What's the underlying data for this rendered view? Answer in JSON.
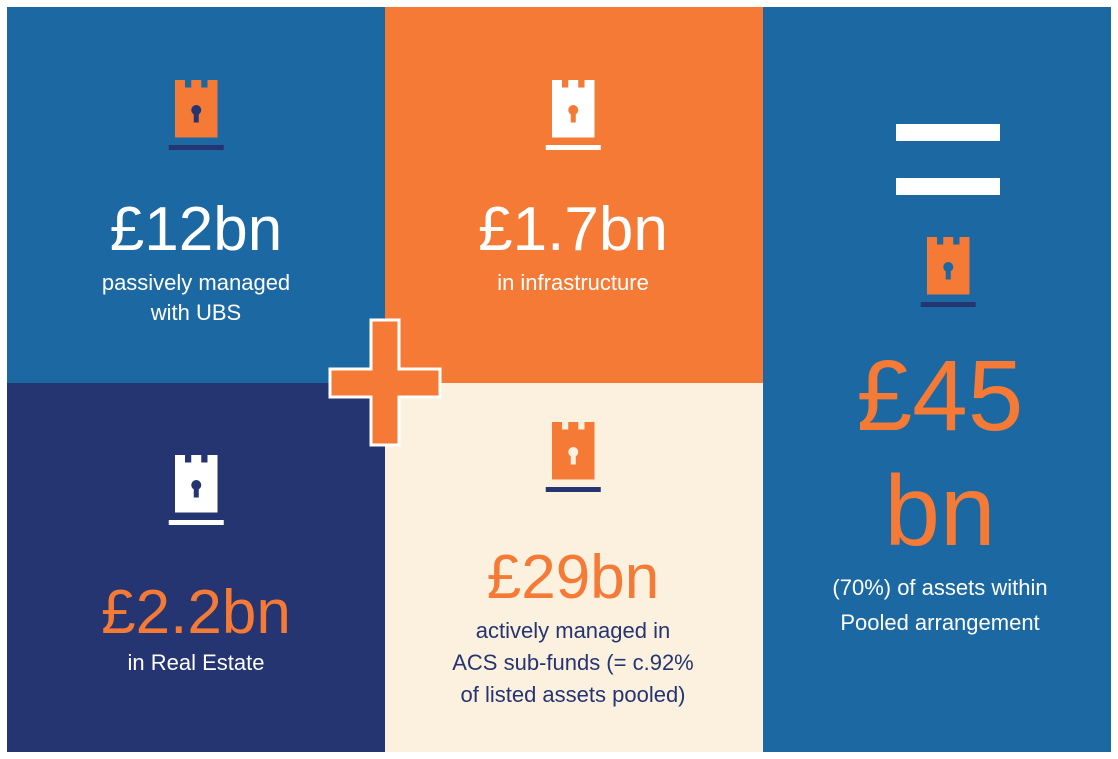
{
  "panels": [
    {
      "amount": "£12bn",
      "lines": [
        "passively managed",
        "with UBS"
      ]
    },
    {
      "amount": "£1.7bn",
      "lines": [
        "in infrastructure"
      ]
    },
    {
      "amount": "£2.2bn",
      "lines": [
        "in Real Estate"
      ]
    },
    {
      "amount": "£29bn",
      "lines": [
        "actively managed in",
        "ACS sub-funds (= c.92%",
        "of listed assets pooled)"
      ]
    },
    {
      "amount_lines": [
        "£45",
        "bn"
      ],
      "lines": [
        "(70%) of assets within",
        "Pooled arrangement"
      ]
    }
  ]
}
